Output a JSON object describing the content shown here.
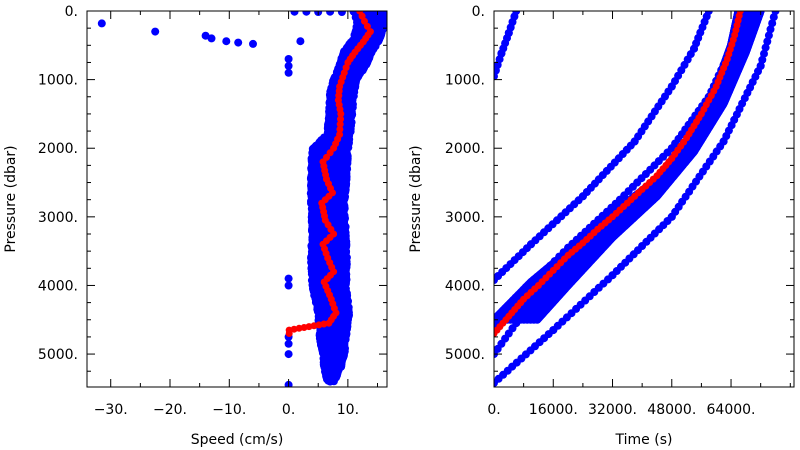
{
  "colors": {
    "cloud": "#0000ff",
    "mean": "#ff0000",
    "axes": "#000000"
  },
  "chart_data": [
    {
      "type": "scatter",
      "title": "",
      "xlabel": "Speed (cm/s)",
      "ylabel": "Pressure (dbar)",
      "xlim": [
        -34,
        16.6
      ],
      "ylim": [
        5480,
        0
      ],
      "y_inverted": true,
      "x_ticks": [
        -30,
        -20,
        -10,
        0,
        10
      ],
      "x_tick_labels": [
        "−30.",
        "−20.",
        "−10.",
        "0.",
        "10."
      ],
      "y_ticks": [
        0,
        1000,
        2000,
        3000,
        4000,
        5000
      ],
      "y_tick_labels": [
        "0.",
        "1000.",
        "2000.",
        "3000.",
        "4000.",
        "5000."
      ],
      "grid": false,
      "series": [
        {
          "role": "blue samples",
          "color": "#0000ff",
          "points": [
            [
              -31.5,
              180
            ],
            [
              -22.5,
              300
            ],
            [
              -14,
              360
            ],
            [
              -13,
              400
            ],
            [
              -10.5,
              440
            ],
            [
              -8.5,
              460
            ],
            [
              -6,
              480
            ],
            [
              2,
              440
            ],
            [
              0,
              700
            ],
            [
              0,
              800
            ],
            [
              0,
              900
            ],
            [
              0,
              3900
            ],
            [
              0,
              4000
            ],
            [
              0,
              4750
            ],
            [
              0,
              4850
            ],
            [
              0,
              5000
            ],
            [
              0,
              5450
            ],
            [
              1,
              10
            ],
            [
              3,
              10
            ],
            [
              5,
              15
            ],
            [
              7,
              10
            ],
            [
              9,
              15
            ],
            [
              11,
              12
            ],
            [
              13,
              8
            ],
            [
              15,
              20
            ],
            [
              11.5,
              100
            ],
            [
              14.2,
              200
            ],
            [
              12.8,
              300
            ],
            [
              13.5,
              400
            ],
            [
              11.2,
              600
            ],
            [
              9.5,
              1000
            ]
          ],
          "envelope": [
            [
              0,
              11.2,
              16.2
            ],
            [
              200,
              11.8,
              16.0
            ],
            [
              400,
              11.2,
              15.2
            ],
            [
              600,
              9.5,
              13.8
            ],
            [
              800,
              8.8,
              12.8
            ],
            [
              1000,
              7.8,
              11.2
            ],
            [
              1200,
              7.2,
              10.8
            ],
            [
              1500,
              7.0,
              10.5
            ],
            [
              1800,
              6.8,
              10.2
            ],
            [
              2000,
              4.2,
              9.8
            ],
            [
              2400,
              4.0,
              9.6
            ],
            [
              2800,
              4.0,
              9.2
            ],
            [
              3200,
              4.2,
              9.4
            ],
            [
              3600,
              4.0,
              9.6
            ],
            [
              4000,
              4.2,
              9.5
            ],
            [
              4400,
              5.2,
              10.0
            ],
            [
              4800,
              5.5,
              9.4
            ],
            [
              5000,
              6.0,
              9.2
            ],
            [
              5200,
              6.2,
              8.6
            ],
            [
              5400,
              6.8,
              7.4
            ]
          ]
        },
        {
          "role": "red mean profile",
          "color": "#ff0000",
          "points": [
            [
              12.0,
              0
            ],
            [
              12.8,
              150
            ],
            [
              13.8,
              300
            ],
            [
              12.6,
              450
            ],
            [
              11.2,
              600
            ],
            [
              10.0,
              750
            ],
            [
              9.4,
              900
            ],
            [
              8.6,
              1100
            ],
            [
              8.4,
              1300
            ],
            [
              8.8,
              1500
            ],
            [
              8.6,
              1800
            ],
            [
              7.6,
              2000
            ],
            [
              5.8,
              2200
            ],
            [
              6.4,
              2450
            ],
            [
              7.4,
              2650
            ],
            [
              5.6,
              2800
            ],
            [
              6.2,
              3050
            ],
            [
              7.6,
              3250
            ],
            [
              5.8,
              3400
            ],
            [
              6.6,
              3600
            ],
            [
              7.6,
              3800
            ],
            [
              6.0,
              3950
            ],
            [
              7.2,
              4200
            ],
            [
              8.0,
              4400
            ],
            [
              6.8,
              4550
            ],
            [
              0.1,
              4650
            ],
            [
              0.1,
              4700
            ]
          ]
        }
      ]
    },
    {
      "type": "scatter",
      "title": "",
      "xlabel": "Time (s)",
      "ylabel": "Pressure (dbar)",
      "xlim": [
        0,
        81000
      ],
      "ylim": [
        5480,
        0
      ],
      "y_inverted": true,
      "x_ticks": [
        0,
        16000,
        32000,
        48000,
        64000
      ],
      "x_tick_labels": [
        "0.",
        "16000.",
        "32000.",
        "48000.",
        "64000."
      ],
      "y_ticks": [
        0,
        1000,
        2000,
        3000,
        4000,
        5000
      ],
      "y_tick_labels": [
        "0.",
        "1000.",
        "2000.",
        "3000.",
        "4000.",
        "5000."
      ],
      "grid": false,
      "series": [
        {
          "role": "blue samples",
          "color": "#0000ff",
          "lines": [
            [
              [
                0,
                5000
              ],
              [
                8000,
                4400
              ],
              [
                20000,
                3700
              ],
              [
                34000,
                3000
              ],
              [
                48000,
                2200
              ],
              [
                58000,
                1450
              ],
              [
                66000,
                700
              ],
              [
                70000,
                0
              ]
            ],
            [
              [
                0,
                4650
              ],
              [
                8000,
                4100
              ],
              [
                20000,
                3450
              ],
              [
                34000,
                2750
              ],
              [
                48000,
                2000
              ],
              [
                58000,
                1250
              ],
              [
                64000,
                550
              ],
              [
                66000,
                0
              ]
            ],
            [
              [
                0,
                3920
              ],
              [
                10000,
                3400
              ],
              [
                24000,
                2700
              ],
              [
                38000,
                1900
              ],
              [
                48000,
                1100
              ],
              [
                54000,
                550
              ],
              [
                58000,
                0
              ]
            ],
            [
              [
                0,
                5420
              ],
              [
                16000,
                4650
              ],
              [
                32000,
                3850
              ],
              [
                48000,
                3000
              ],
              [
                62000,
                1900
              ],
              [
                72000,
                800
              ],
              [
                76000,
                0
              ]
            ],
            [
              [
                0,
                950
              ],
              [
                2000,
                620
              ],
              [
                4000,
                320
              ],
              [
                6000,
                0
              ]
            ]
          ],
          "band_upper": [
            [
              0,
              4500
            ],
            [
              10000,
              3950
            ],
            [
              20000,
              3500
            ],
            [
              32000,
              2950
            ],
            [
              44000,
              2450
            ],
            [
              54000,
              1750
            ],
            [
              60000,
              1100
            ],
            [
              64000,
              500
            ],
            [
              66000,
              0
            ]
          ],
          "band_lower": [
            [
              0,
              5150
            ],
            [
              10000,
              4600
            ],
            [
              20000,
              4000
            ],
            [
              32000,
              3300
            ],
            [
              44000,
              2700
            ],
            [
              54000,
              2050
            ],
            [
              62000,
              1350
            ],
            [
              68000,
              600
            ],
            [
              72000,
              0
            ]
          ]
        },
        {
          "role": "red mean profile",
          "color": "#ff0000",
          "points": [
            [
              0,
              4700
            ],
            [
              4000,
              4450
            ],
            [
              8000,
              4200
            ],
            [
              12000,
              4000
            ],
            [
              16000,
              3780
            ],
            [
              20000,
              3560
            ],
            [
              24000,
              3380
            ],
            [
              28000,
              3180
            ],
            [
              32000,
              3000
            ],
            [
              36000,
              2800
            ],
            [
              40000,
              2600
            ],
            [
              44000,
              2400
            ],
            [
              48000,
              2150
            ],
            [
              52000,
              1850
            ],
            [
              56000,
              1500
            ],
            [
              60000,
              1100
            ],
            [
              63000,
              700
            ],
            [
              65000,
              350
            ],
            [
              66500,
              0
            ]
          ]
        }
      ]
    }
  ]
}
